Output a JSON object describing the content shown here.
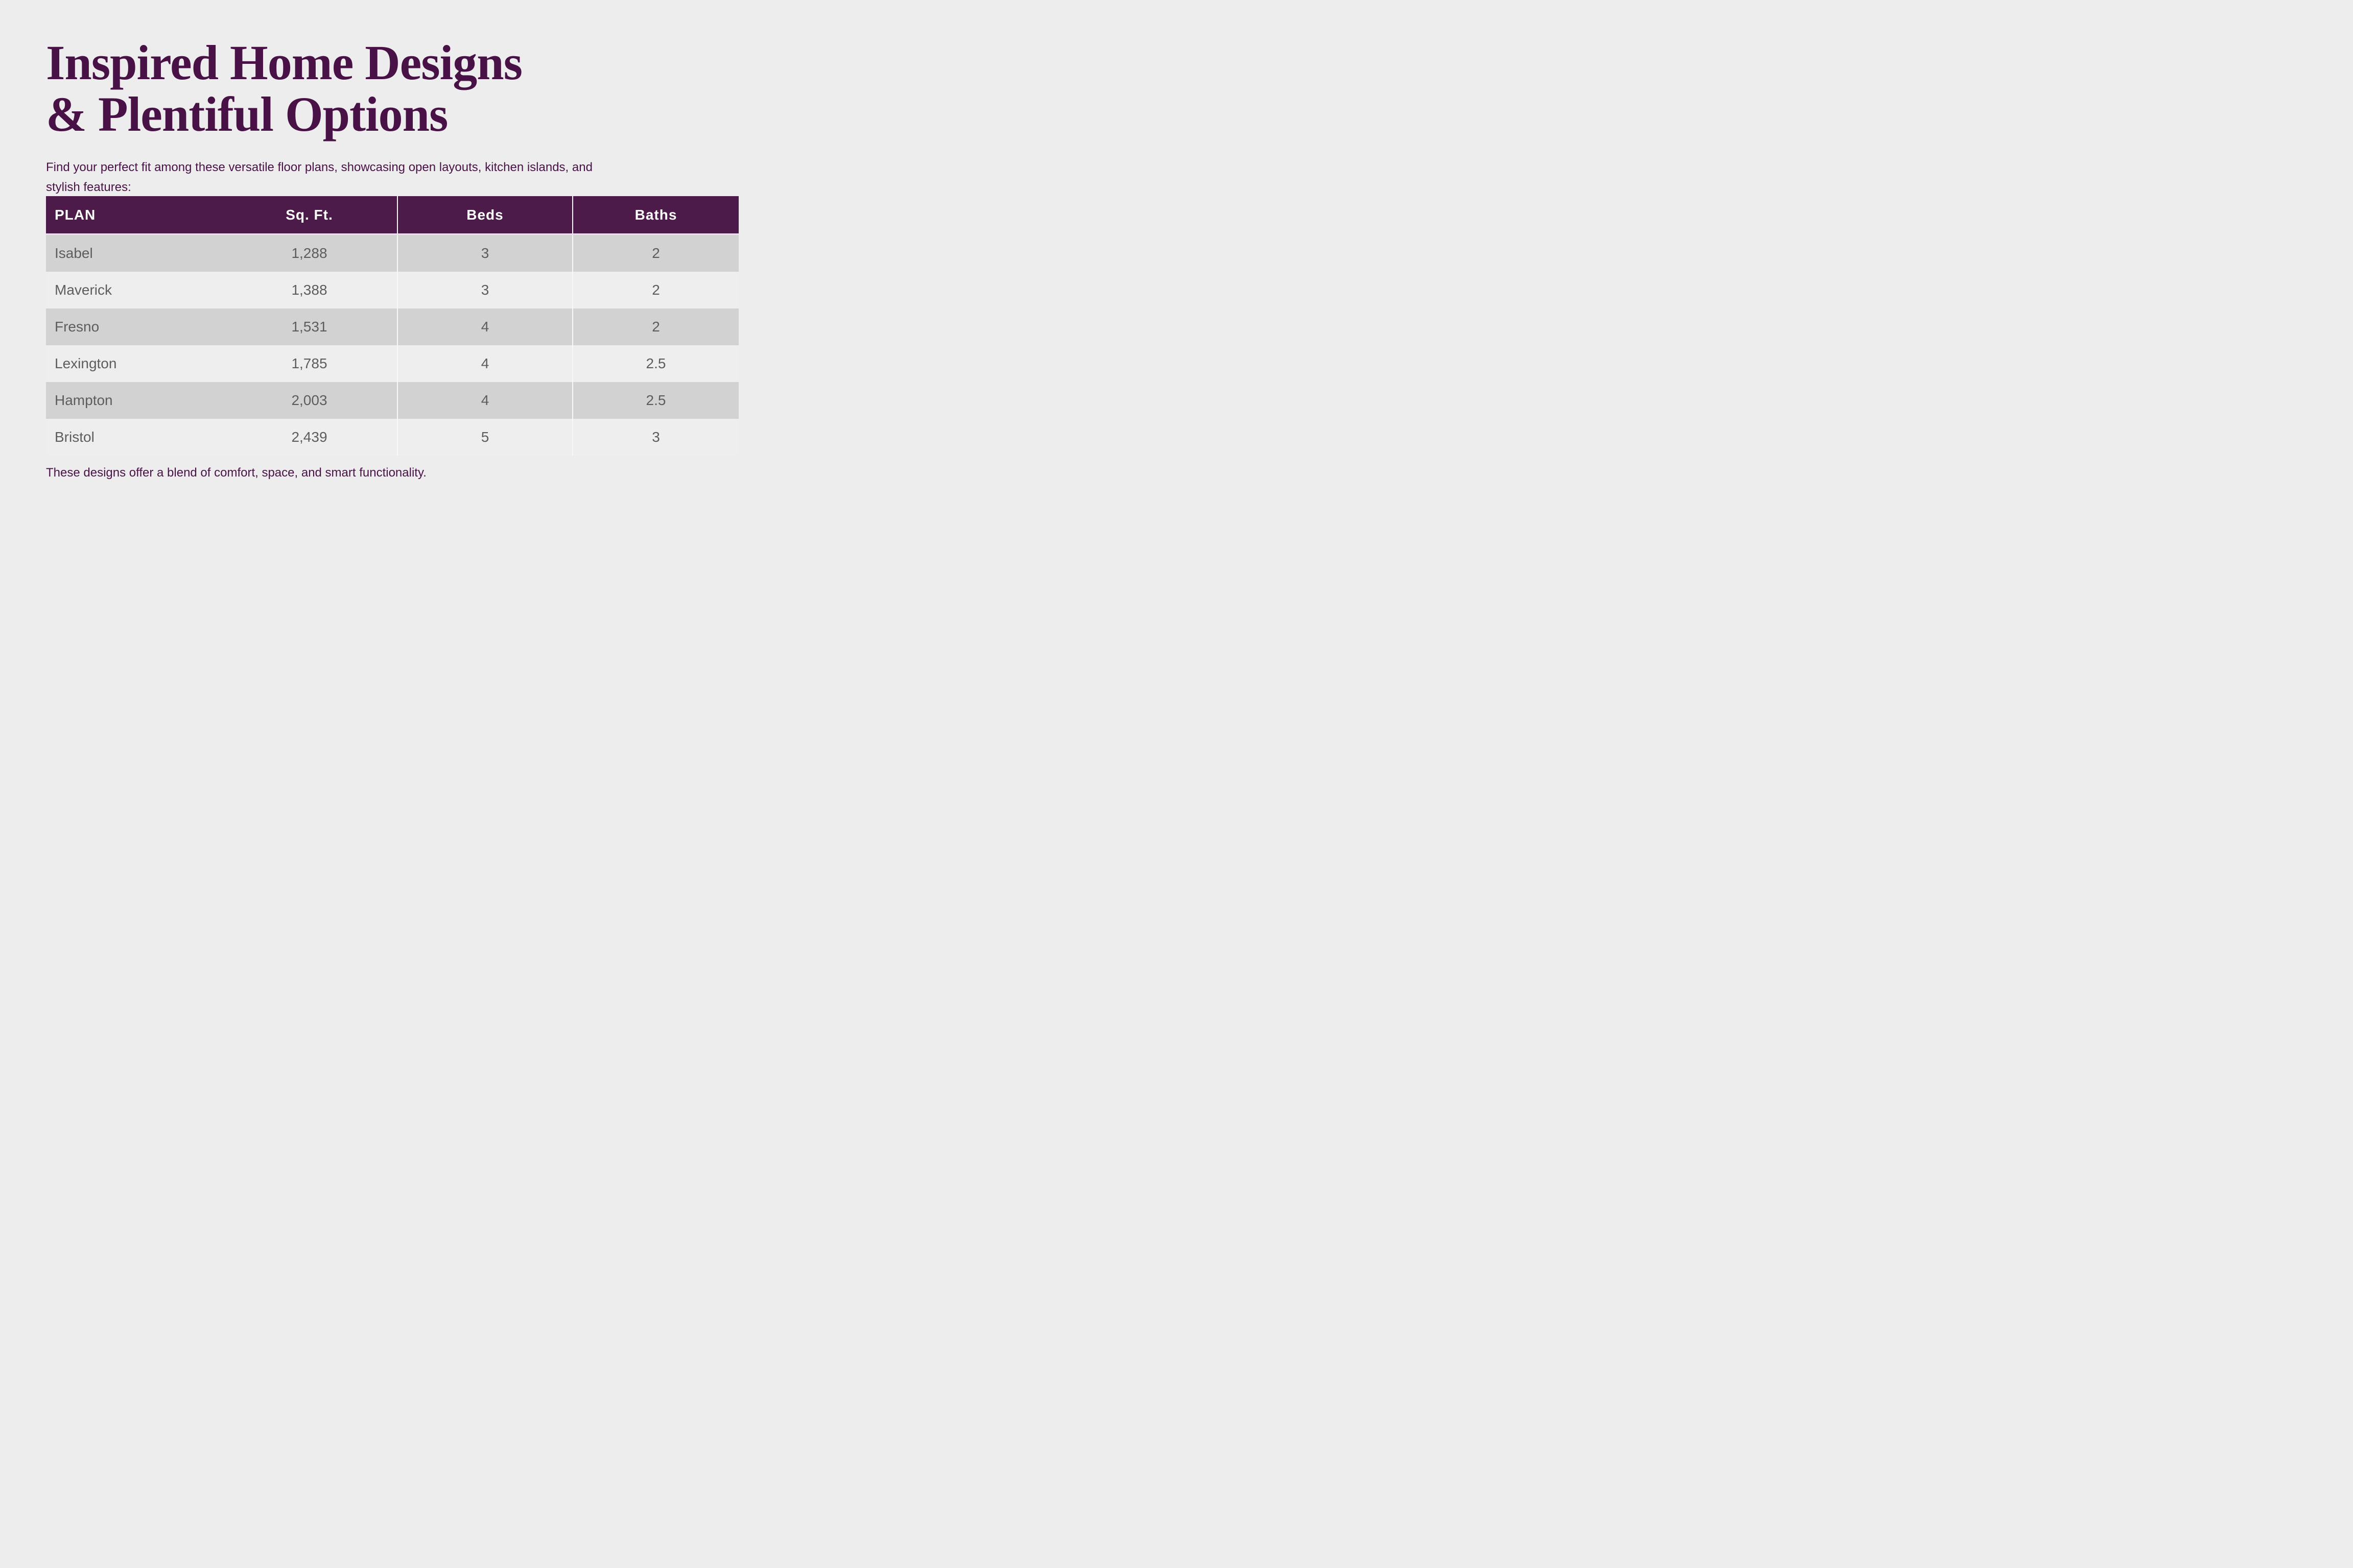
{
  "page": {
    "title_lines": [
      "Inspired Home Designs",
      "& Plentiful Options"
    ],
    "subtitle_lines": [
      "Find your perfect fit among these versatile floor plans, showcasing open layouts, kitchen islands, and",
      "stylish features:"
    ],
    "footer": "These designs offer a blend of comfort, space, and smart functionality."
  },
  "table": {
    "columns": [
      "PLAN",
      "Sq. Ft.",
      "Beds",
      "Baths"
    ],
    "rows": [
      {
        "plan": "Isabel",
        "sqft": "1,288",
        "beds": "3",
        "baths": "2"
      },
      {
        "plan": "Maverick",
        "sqft": "1,388",
        "beds": "3",
        "baths": "2"
      },
      {
        "plan": "Fresno",
        "sqft": "1,531",
        "beds": "4",
        "baths": "2"
      },
      {
        "plan": "Lexington",
        "sqft": "1,785",
        "beds": "4",
        "baths": "2.5"
      },
      {
        "plan": "Hampton",
        "sqft": "2,003",
        "beds": "4",
        "baths": "2.5"
      },
      {
        "plan": "Bristol",
        "sqft": "2,439",
        "beds": "5",
        "baths": "3"
      }
    ]
  },
  "colors": {
    "background": "#eeedee",
    "brand_purple": "#491247",
    "header_bg": "#4c1b4a",
    "header_text": "#ffffff",
    "header_gap": "#e9e0e9",
    "row_dark": "#d3d2d2",
    "row_light": "#efeeef",
    "cell_text": "#5e5d5e",
    "divider": "#f8f6f8"
  }
}
